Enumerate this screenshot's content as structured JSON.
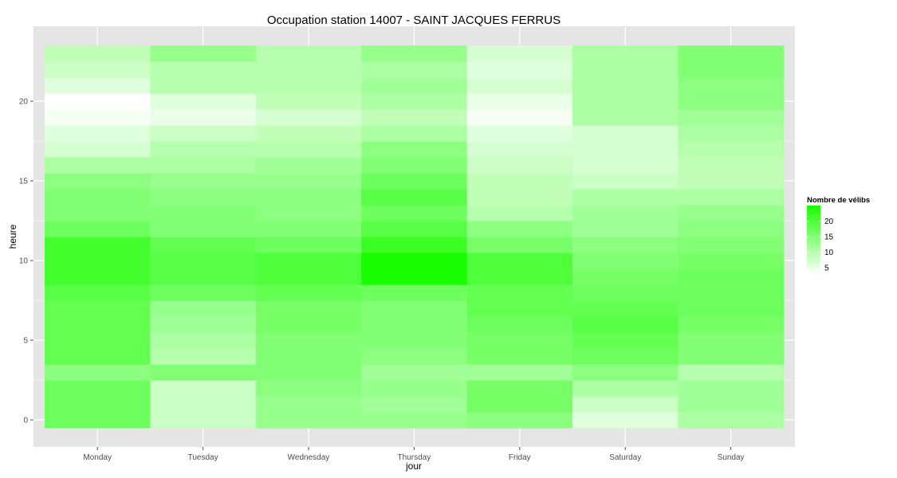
{
  "chart_data": {
    "type": "heatmap",
    "title": "Occupation station 14007 - SAINT JACQUES FERRUS",
    "xlabel": "jour",
    "ylabel": "heure",
    "categories": [
      "Monday",
      "Tuesday",
      "Wednesday",
      "Thursday",
      "Friday",
      "Saturday",
      "Sunday"
    ],
    "hours": [
      0,
      1,
      2,
      3,
      4,
      5,
      6,
      7,
      8,
      9,
      10,
      11,
      12,
      13,
      14,
      15,
      16,
      17,
      18,
      19,
      20,
      21,
      22,
      23
    ],
    "ylim": [
      -0.5,
      23.5
    ],
    "yticks": [
      0,
      5,
      10,
      15,
      20
    ],
    "values": [
      [
        17,
        8,
        13,
        13,
        14,
        6,
        11
      ],
      [
        17,
        8,
        13,
        12,
        16,
        8,
        12
      ],
      [
        17,
        8,
        14,
        13,
        16,
        11,
        12
      ],
      [
        14,
        15,
        15,
        12,
        12,
        14,
        10
      ],
      [
        18,
        10,
        15,
        14,
        16,
        17,
        15
      ],
      [
        18,
        11,
        15,
        15,
        16,
        18,
        15
      ],
      [
        18,
        12,
        16,
        15,
        17,
        19,
        16
      ],
      [
        18,
        13,
        16,
        15,
        18,
        18,
        17
      ],
      [
        19,
        17,
        18,
        17,
        18,
        17,
        17
      ],
      [
        21,
        19,
        20,
        25,
        20,
        16,
        17
      ],
      [
        21,
        19,
        20,
        25,
        20,
        15,
        16
      ],
      [
        21,
        18,
        17,
        22,
        16,
        14,
        15
      ],
      [
        17,
        15,
        15,
        19,
        14,
        12,
        14
      ],
      [
        15,
        15,
        14,
        17,
        10,
        12,
        13
      ],
      [
        15,
        14,
        14,
        19,
        9,
        11,
        11
      ],
      [
        14,
        13,
        13,
        17,
        9,
        8,
        9
      ],
      [
        11,
        11,
        12,
        15,
        8,
        7,
        9
      ],
      [
        7,
        10,
        10,
        14,
        7,
        7,
        10
      ],
      [
        6,
        8,
        9,
        11,
        6,
        7,
        11
      ],
      [
        4,
        5,
        7,
        9,
        4,
        11,
        12
      ],
      [
        3,
        6,
        9,
        11,
        5,
        11,
        14
      ],
      [
        6,
        10,
        10,
        12,
        7,
        11,
        14
      ],
      [
        8,
        10,
        10,
        11,
        6,
        11,
        15
      ],
      [
        9,
        13,
        10,
        13,
        7,
        11,
        15
      ]
    ],
    "legend": {
      "title": "Nombre de vélibs",
      "breaks": [
        5,
        10,
        15,
        20
      ],
      "range": [
        3,
        25
      ],
      "placement": "right"
    },
    "colors": {
      "low": "#ffffff",
      "high": "#1aff00",
      "panel": "#e5e5e5",
      "grid": "#ffffff"
    },
    "grid": true
  }
}
